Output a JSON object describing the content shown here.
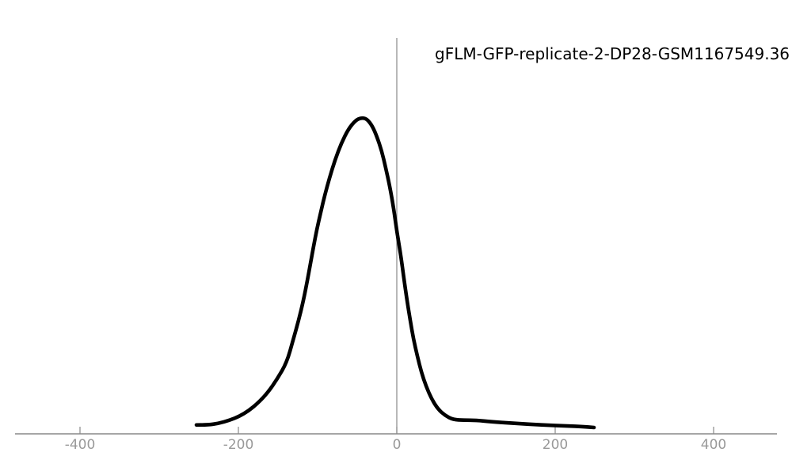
{
  "colors": {
    "background": "#ffffff",
    "curve": "#000000",
    "axis": "#888888",
    "tick_label": "#999999",
    "title": "#000000"
  },
  "chart_data": {
    "type": "line",
    "title": "gFLM-GFP-replicate-2-DP28-GSM1167549.36",
    "xlabel": "",
    "ylabel": "",
    "x_ticks": [
      -400,
      -200,
      0,
      200,
      400
    ],
    "x_tick_labels": [
      "-400",
      "-200",
      "0",
      "200",
      "400"
    ],
    "xlim": [
      -482,
      480
    ],
    "ylim": [
      0,
      1.25
    ],
    "grid": false,
    "legend": "none",
    "y_axis": "hidden",
    "reference_line_x": 0,
    "series": [
      {
        "name": "density",
        "color": "#000000",
        "points": [
          [
            -253,
            0.028
          ],
          [
            -239,
            0.028
          ],
          [
            -225,
            0.033
          ],
          [
            -211,
            0.043
          ],
          [
            -199,
            0.055
          ],
          [
            -187,
            0.073
          ],
          [
            -175,
            0.098
          ],
          [
            -163,
            0.13
          ],
          [
            -151,
            0.173
          ],
          [
            -139,
            0.225
          ],
          [
            -131,
            0.295
          ],
          [
            -124,
            0.358
          ],
          [
            -118,
            0.42
          ],
          [
            -113,
            0.483
          ],
          [
            -109,
            0.538
          ],
          [
            -105,
            0.593
          ],
          [
            -101,
            0.645
          ],
          [
            -96,
            0.7
          ],
          [
            -91,
            0.753
          ],
          [
            -85,
            0.808
          ],
          [
            -78,
            0.865
          ],
          [
            -70,
            0.918
          ],
          [
            -61,
            0.963
          ],
          [
            -52,
            0.99
          ],
          [
            -45,
            0.998
          ],
          [
            -38,
            0.995
          ],
          [
            -31,
            0.973
          ],
          [
            -25,
            0.938
          ],
          [
            -19,
            0.893
          ],
          [
            -14,
            0.84
          ],
          [
            -9,
            0.783
          ],
          [
            -4,
            0.713
          ],
          [
            0,
            0.64
          ],
          [
            5,
            0.565
          ],
          [
            9,
            0.49
          ],
          [
            13,
            0.42
          ],
          [
            17,
            0.358
          ],
          [
            21,
            0.3
          ],
          [
            26,
            0.245
          ],
          [
            31,
            0.195
          ],
          [
            37,
            0.15
          ],
          [
            44,
            0.11
          ],
          [
            52,
            0.078
          ],
          [
            61,
            0.058
          ],
          [
            71,
            0.045
          ],
          [
            85,
            0.043
          ],
          [
            100,
            0.043
          ],
          [
            120,
            0.038
          ],
          [
            150,
            0.033
          ],
          [
            183,
            0.028
          ],
          [
            215,
            0.025
          ],
          [
            235,
            0.023
          ],
          [
            249,
            0.02
          ]
        ]
      }
    ]
  }
}
